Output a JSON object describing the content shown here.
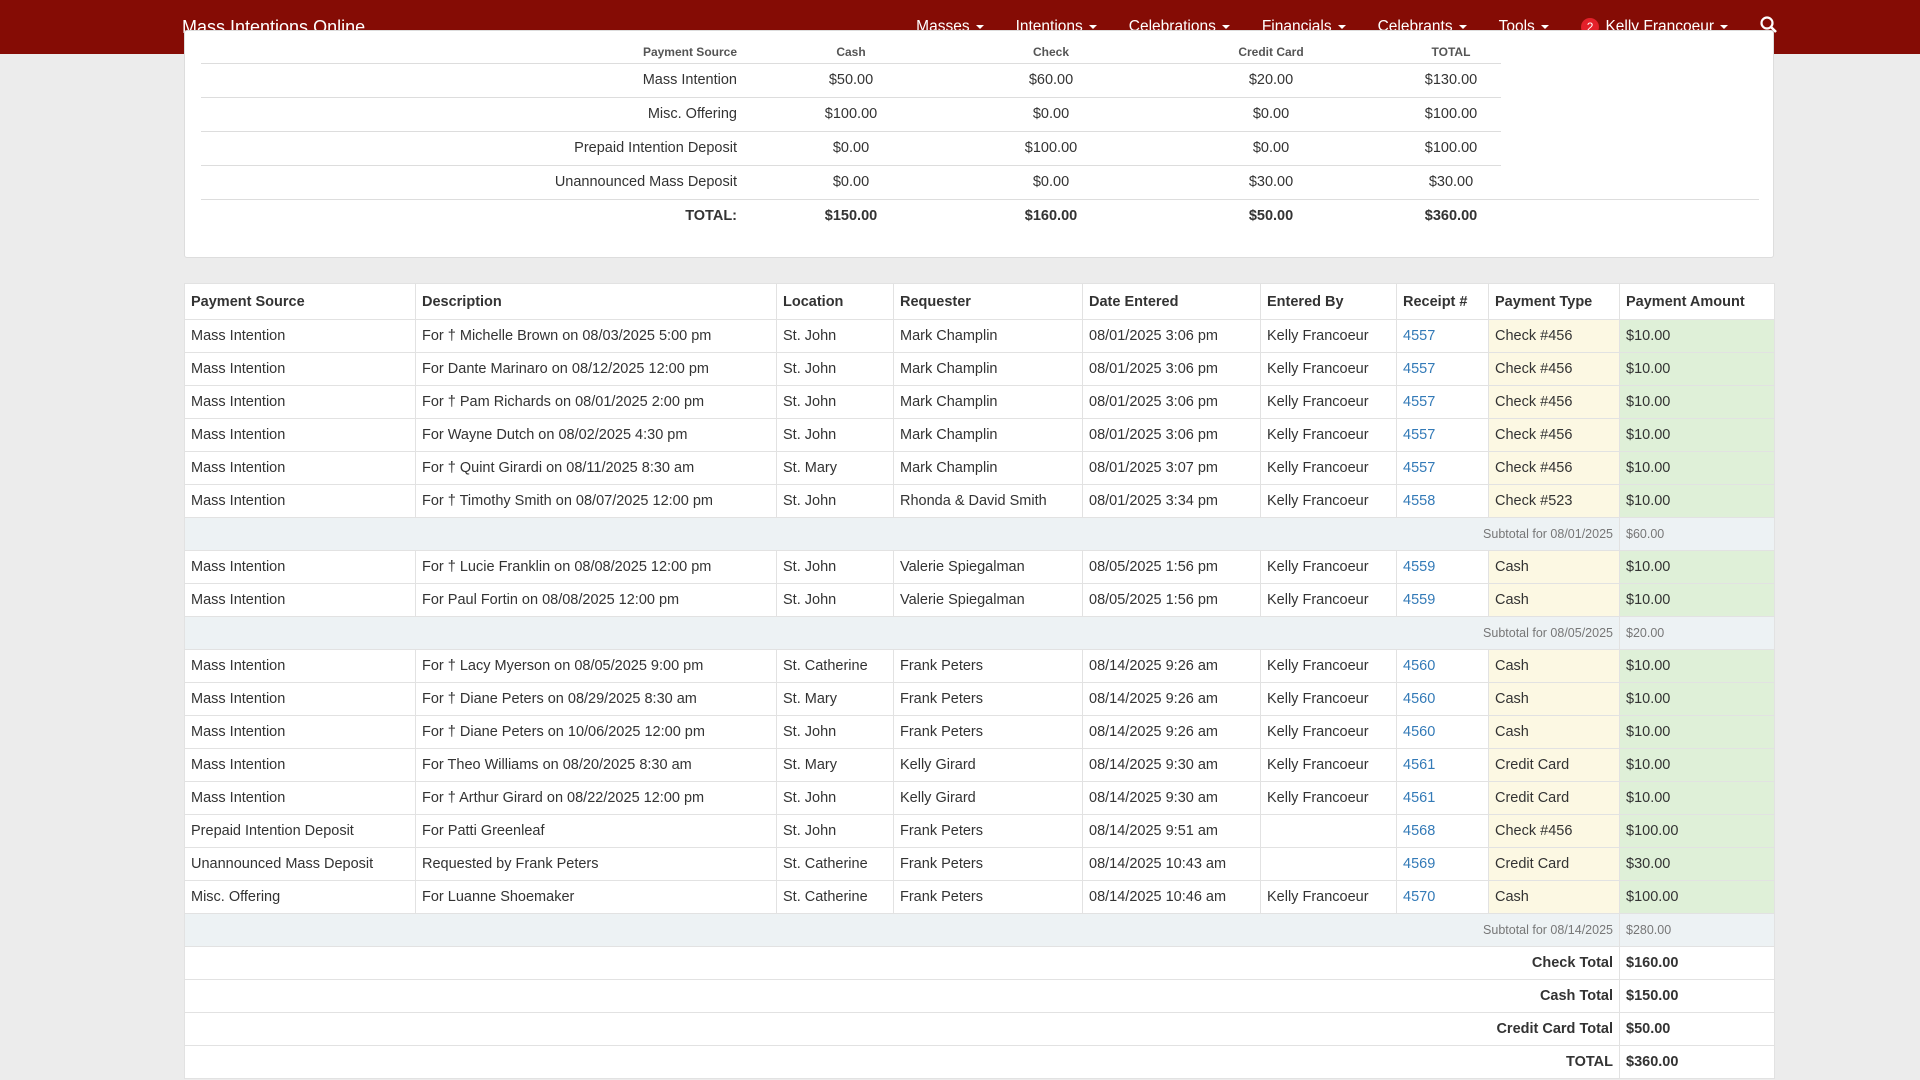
{
  "navbar": {
    "brand": "Mass Intentions Online",
    "menus": [
      "Masses",
      "Intentions",
      "Celebrations",
      "Financials",
      "Celebrants",
      "Tools"
    ],
    "badge": "2",
    "user": "Kelly Francoeur"
  },
  "summary": {
    "header": [
      "Payment Source",
      "Cash",
      "Check",
      "Credit Card",
      "TOTAL"
    ],
    "rows": [
      [
        "Mass Intention",
        "$50.00",
        "$60.00",
        "$20.00",
        "$130.00"
      ],
      [
        "Misc. Offering",
        "$100.00",
        "$0.00",
        "$0.00",
        "$100.00"
      ],
      [
        "Prepaid Intention Deposit",
        "$0.00",
        "$100.00",
        "$0.00",
        "$100.00"
      ],
      [
        "Unannounced Mass Deposit",
        "$0.00",
        "$0.00",
        "$30.00",
        "$30.00"
      ]
    ],
    "total": [
      "TOTAL:",
      "$150.00",
      "$160.00",
      "$50.00",
      "$360.00"
    ]
  },
  "table": {
    "header": [
      "Payment Source",
      "Description",
      "Location",
      "Requester",
      "Date Entered",
      "Entered By",
      "Receipt #",
      "Payment Type",
      "Payment Amount"
    ],
    "groups": [
      {
        "rows": [
          [
            "Mass Intention",
            "For † Michelle Brown on 08/03/2025 5:00 pm",
            "St. John",
            "Mark Champlin",
            "08/01/2025 3:06 pm",
            "Kelly Francoeur",
            "4557",
            "Check #456",
            "$10.00"
          ],
          [
            "Mass Intention",
            "For Dante Marinaro on 08/12/2025 12:00 pm",
            "St. John",
            "Mark Champlin",
            "08/01/2025 3:06 pm",
            "Kelly Francoeur",
            "4557",
            "Check #456",
            "$10.00"
          ],
          [
            "Mass Intention",
            "For † Pam Richards on 08/01/2025 2:00 pm",
            "St. John",
            "Mark Champlin",
            "08/01/2025 3:06 pm",
            "Kelly Francoeur",
            "4557",
            "Check #456",
            "$10.00"
          ],
          [
            "Mass Intention",
            "For Wayne Dutch on 08/02/2025 4:30 pm",
            "St. John",
            "Mark Champlin",
            "08/01/2025 3:06 pm",
            "Kelly Francoeur",
            "4557",
            "Check #456",
            "$10.00"
          ],
          [
            "Mass Intention",
            "For † Quint Girardi on 08/11/2025 8:30 am",
            "St. Mary",
            "Mark Champlin",
            "08/01/2025 3:07 pm",
            "Kelly Francoeur",
            "4557",
            "Check #456",
            "$10.00"
          ],
          [
            "Mass Intention",
            "For † Timothy Smith on 08/07/2025 12:00 pm",
            "St. John",
            "Rhonda & David Smith",
            "08/01/2025 3:34 pm",
            "Kelly Francoeur",
            "4558",
            "Check #523",
            "$10.00"
          ]
        ],
        "subtotal": {
          "label": "Subtotal for 08/01/2025",
          "amount": "$60.00"
        }
      },
      {
        "rows": [
          [
            "Mass Intention",
            "For † Lucie Franklin on 08/08/2025 12:00 pm",
            "St. John",
            "Valerie Spiegalman",
            "08/05/2025 1:56 pm",
            "Kelly Francoeur",
            "4559",
            "Cash",
            "$10.00"
          ],
          [
            "Mass Intention",
            "For Paul Fortin on 08/08/2025 12:00 pm",
            "St. John",
            "Valerie Spiegalman",
            "08/05/2025 1:56 pm",
            "Kelly Francoeur",
            "4559",
            "Cash",
            "$10.00"
          ]
        ],
        "subtotal": {
          "label": "Subtotal for 08/05/2025",
          "amount": "$20.00"
        }
      },
      {
        "rows": [
          [
            "Mass Intention",
            "For † Lacy Myerson on 08/05/2025 9:00 pm",
            "St. Catherine",
            "Frank Peters",
            "08/14/2025 9:26 am",
            "Kelly Francoeur",
            "4560",
            "Cash",
            "$10.00"
          ],
          [
            "Mass Intention",
            "For † Diane Peters on 08/29/2025 8:30 am",
            "St. Mary",
            "Frank Peters",
            "08/14/2025 9:26 am",
            "Kelly Francoeur",
            "4560",
            "Cash",
            "$10.00"
          ],
          [
            "Mass Intention",
            "For † Diane Peters on 10/06/2025 12:00 pm",
            "St. John",
            "Frank Peters",
            "08/14/2025 9:26 am",
            "Kelly Francoeur",
            "4560",
            "Cash",
            "$10.00"
          ],
          [
            "Mass Intention",
            "For Theo Williams on 08/20/2025 8:30 am",
            "St. Mary",
            "Kelly Girard",
            "08/14/2025 9:30 am",
            "Kelly Francoeur",
            "4561",
            "Credit Card",
            "$10.00"
          ],
          [
            "Mass Intention",
            "For † Arthur Girard on 08/22/2025 12:00 pm",
            "St. John",
            "Kelly Girard",
            "08/14/2025 9:30 am",
            "Kelly Francoeur",
            "4561",
            "Credit Card",
            "$10.00"
          ],
          [
            "Prepaid Intention Deposit",
            "For Patti Greenleaf",
            "St. John",
            "Frank Peters",
            "08/14/2025 9:51 am",
            null,
            "4568",
            "Check #456",
            "$100.00"
          ],
          [
            "Unannounced Mass Deposit",
            "Requested by Frank Peters",
            "St. Catherine",
            "Frank Peters",
            "08/14/2025 10:43 am",
            null,
            "4569",
            "Credit Card",
            "$30.00"
          ],
          [
            "Misc. Offering",
            "For Luanne Shoemaker",
            "St. Catherine",
            "Frank Peters",
            "08/14/2025 10:46 am",
            "Kelly Francoeur",
            "4570",
            "Cash",
            "$100.00"
          ]
        ],
        "subtotal": {
          "label": "Subtotal for 08/14/2025",
          "amount": "$280.00"
        }
      }
    ],
    "totals": [
      [
        "Check Total",
        "$160.00"
      ],
      [
        "Cash Total",
        "$150.00"
      ],
      [
        "Credit Card Total",
        "$50.00"
      ],
      [
        "TOTAL",
        "$360.00"
      ]
    ]
  }
}
